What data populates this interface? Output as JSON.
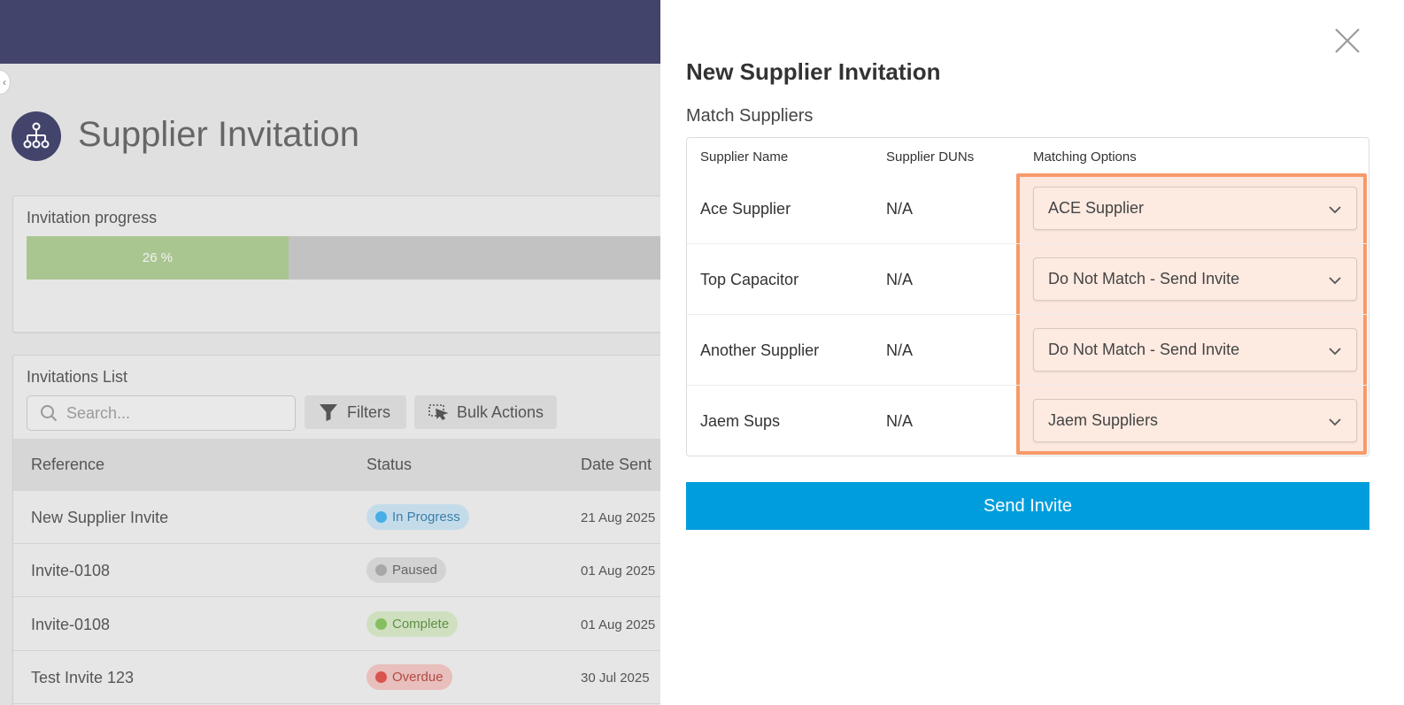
{
  "page": {
    "title": "Supplier Invitation"
  },
  "progress": {
    "title": "Invitation progress",
    "percent": 26,
    "label": "26 %"
  },
  "list": {
    "title": "Invitations List",
    "search_placeholder": "Search...",
    "filters_label": "Filters",
    "bulk_actions_label": "Bulk Actions",
    "columns": [
      "Reference",
      "Status",
      "Date Sent"
    ],
    "rows": [
      {
        "reference": "New Supplier Invite",
        "status": "In Progress",
        "status_color": "#48aee6",
        "badge_bg": "#c4dcea",
        "badge_text": "#3c7ea8",
        "date": "21 Aug 2025"
      },
      {
        "reference": "Invite-0108",
        "status": "Paused",
        "status_color": "#a8a8a8",
        "badge_bg": "#d3d3d3",
        "badge_text": "#666666",
        "date": "01 Aug 2025"
      },
      {
        "reference": "Invite-0108",
        "status": "Complete",
        "status_color": "#86be62",
        "badge_bg": "#cfe0c1",
        "badge_text": "#5e8f43",
        "date": "01 Aug 2025"
      },
      {
        "reference": "Test Invite 123",
        "status": "Overdue",
        "status_color": "#d9534f",
        "badge_bg": "#e8bfbc",
        "badge_text": "#b24b45",
        "date": "30 Jul 2025"
      }
    ]
  },
  "modal": {
    "title": "New Supplier Invitation",
    "subtitle": "Match Suppliers",
    "columns": [
      "Supplier Name",
      "Supplier DUNs",
      "Matching Options"
    ],
    "rows": [
      {
        "name": "Ace Supplier",
        "duns": "N/A",
        "match": "ACE Supplier"
      },
      {
        "name": "Top Capacitor",
        "duns": "N/A",
        "match": "Do Not Match - Send Invite"
      },
      {
        "name": "Another Supplier",
        "duns": "N/A",
        "match": "Do Not Match - Send Invite"
      },
      {
        "name": "Jaem Sups",
        "duns": "N/A",
        "match": "Jaem Suppliers"
      }
    ],
    "send_label": "Send Invite"
  },
  "colors": {
    "header": "#43446c",
    "accent": "#009ddd",
    "highlight_border": "#f79a69",
    "progress_fill": "#a9c690"
  }
}
